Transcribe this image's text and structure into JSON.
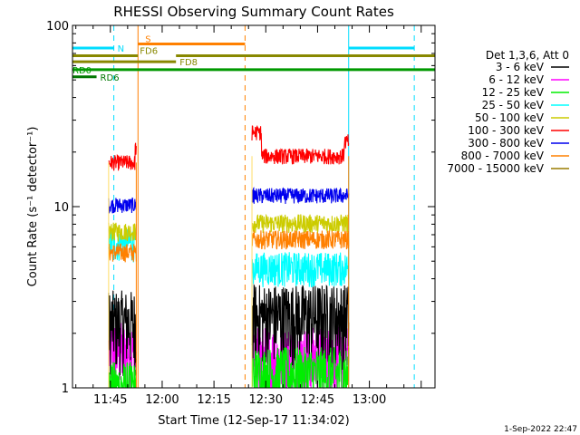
{
  "chart_data": {
    "type": "line",
    "title": "RHESSI Observing Summary Count Rates",
    "xlabel": "Start Time (12-Sep-17 11:34:02)",
    "ylabel": "Count Rate (s⁻¹ detector⁻¹)",
    "yscale": "log",
    "ylim": [
      1,
      100
    ],
    "xlim": [
      "11:34:02",
      "13:19:00"
    ],
    "x_ticks": [
      "11:45",
      "12:00",
      "12:15",
      "12:30",
      "12:45",
      "13:00"
    ],
    "y_ticks": [
      "1",
      "10",
      "100"
    ],
    "legend_header": "Det 1,3,6, Att 0",
    "legend_position": "right",
    "timestamp": "1-Sep-2022 22:47",
    "observing_intervals": [
      {
        "start": "11:44:30",
        "end": "11:52:30"
      },
      {
        "start": "12:26:00",
        "end": "12:54:00"
      }
    ],
    "series": [
      {
        "name": "3 - 6 keV",
        "color": "#000000",
        "levels": [
          2.3,
          2.5
        ]
      },
      {
        "name": "6 - 12 keV",
        "color": "#ff00ff",
        "levels": [
          1.6,
          1.5
        ]
      },
      {
        "name": "12 - 25 keV",
        "color": "#00ee00",
        "levels": [
          1.0,
          1.2
        ]
      },
      {
        "name": "25 - 50 keV",
        "color": "#00ffff",
        "levels": [
          6.3,
          4.6
        ]
      },
      {
        "name": "50 - 100 keV",
        "color": "#cccc00",
        "levels": [
          7.3,
          8.1
        ]
      },
      {
        "name": "100 - 300 keV",
        "color": "#ff0000",
        "levels": [
          17.5,
          19.0
        ]
      },
      {
        "name": "300 - 800 keV",
        "color": "#0000ee",
        "levels": [
          10.2,
          11.5
        ]
      },
      {
        "name": "800 - 7000 keV",
        "color": "#ff8000",
        "levels": [
          5.6,
          6.6
        ]
      },
      {
        "name": "7000 - 15000 keV",
        "color": "#9a7b00",
        "levels": [
          0,
          0
        ]
      }
    ],
    "flags": [
      {
        "name": "N",
        "color": "#00ddff",
        "y": 75,
        "segments": [
          [
            "11:34:02",
            "11:46:00"
          ],
          [
            "12:54:00",
            "13:13:00"
          ]
        ]
      },
      {
        "name": "S",
        "color": "#ff8000",
        "y": 79,
        "segments": [
          [
            "11:53:00",
            "12:24:00"
          ]
        ]
      },
      {
        "name": "FD6",
        "color": "#888800",
        "y": 68,
        "segments": [
          [
            "11:34:02",
            "11:53:00"
          ],
          [
            "12:04:00",
            "13:19:00"
          ]
        ]
      },
      {
        "name": "FD8",
        "color": "#888800",
        "y": 63,
        "segments": [
          [
            "11:34:02",
            "12:04:00"
          ]
        ]
      },
      {
        "name": "RD0",
        "color": "#009900",
        "y": 57,
        "segments": [
          [
            "11:34:02",
            "13:19:00"
          ]
        ]
      },
      {
        "name": "RD6",
        "color": "#007700",
        "y": 52,
        "segments": [
          [
            "11:34:02",
            "11:41:00"
          ]
        ]
      }
    ],
    "event_lines": [
      {
        "time": "11:46:00",
        "color": "#00ddff",
        "style": "dashed"
      },
      {
        "time": "11:53:00",
        "color": "#ff8000",
        "style": "solid"
      },
      {
        "time": "12:24:00",
        "color": "#ff8000",
        "style": "dashed"
      },
      {
        "time": "12:54:00",
        "color": "#00ddff",
        "style": "solid"
      },
      {
        "time": "13:13:00",
        "color": "#00ddff",
        "style": "dashed"
      },
      {
        "time": "11:34:02",
        "color": "#00ddff",
        "style": "solid"
      }
    ]
  }
}
